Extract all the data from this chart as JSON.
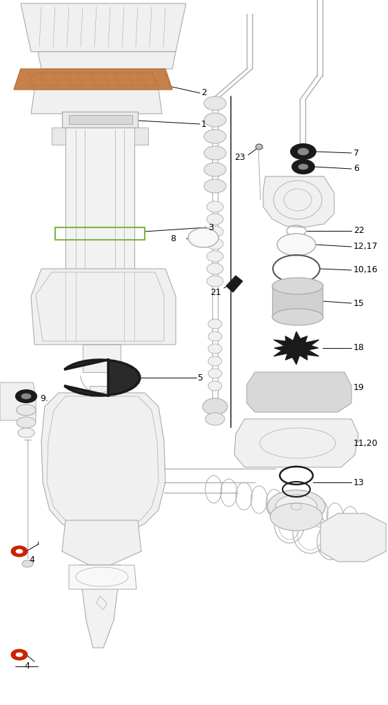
{
  "bg_color": "#ffffff",
  "lc": "#aaaaaa",
  "dc": "#555555",
  "blk": "#1a1a1a",
  "brown": "#b8743a",
  "green": "#7ab83a",
  "red": "#cc2200",
  "label_fs": 9,
  "figsize": [
    5.63,
    10.23
  ],
  "dpi": 100
}
